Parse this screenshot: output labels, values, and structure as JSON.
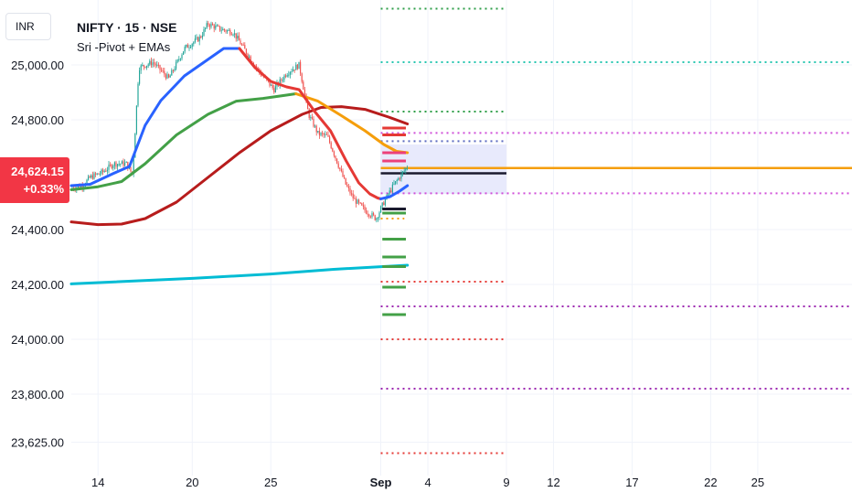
{
  "header": {
    "symbol": "NIFTY · 15 · NSE",
    "indicator": "Sri -Pivot + EMAs"
  },
  "currency_label": "INR",
  "last_price": {
    "value": "24,624.15",
    "change": "+0.33%",
    "numeric": 24624.15
  },
  "colors": {
    "up_candle": "#26a69a",
    "down_candle": "#ef5350",
    "badge": "#f23645",
    "ema_blue": "#2962ff",
    "ema_green": "#43a047",
    "ema_red": "#e53935",
    "ema_darkred": "#b71c1c",
    "ema_cyan": "#00bcd4",
    "ema_orange": "#f59e0b"
  },
  "chart_data": {
    "type": "line",
    "title": "NIFTY · 15 · NSE",
    "subtitle": "Sri -Pivot + EMAs",
    "xlabel": "",
    "ylabel": "",
    "y_ticks": [
      {
        "value": 25000,
        "label": "25,000.00"
      },
      {
        "value": 24800,
        "label": "24,800.00"
      },
      {
        "value": 24400,
        "label": "24,400.00"
      },
      {
        "value": 24200,
        "label": "24,200.00"
      },
      {
        "value": 24000,
        "label": "24,000.00"
      },
      {
        "value": 23800,
        "label": "23,800.00"
      },
      {
        "value": 23625,
        "label": "23,625.00"
      }
    ],
    "x_ticks": [
      {
        "t": 14,
        "label": "14"
      },
      {
        "t": 20,
        "label": "20"
      },
      {
        "t": 25,
        "label": "25"
      },
      {
        "t": 32,
        "label": "Sep"
      },
      {
        "t": 35,
        "label": "4"
      },
      {
        "t": 40,
        "label": "9"
      },
      {
        "t": 43,
        "label": "12"
      },
      {
        "t": 48,
        "label": "17"
      },
      {
        "t": 53,
        "label": "22"
      },
      {
        "t": 56,
        "label": "25"
      }
    ],
    "ylim": [
      23570,
      25210
    ],
    "xlim": [
      12.3,
      62.0
    ],
    "grid": true,
    "price_path": [
      [
        12.3,
        24550
      ],
      [
        13.0,
        24560
      ],
      [
        13.5,
        24590
      ],
      [
        14.3,
        24610
      ],
      [
        15.0,
        24640
      ],
      [
        15.8,
        24640
      ],
      [
        16.2,
        24600
      ],
      [
        16.6,
        24990
      ],
      [
        17.5,
        25010
      ],
      [
        18.5,
        24950
      ],
      [
        19.5,
        25060
      ],
      [
        20.5,
        25100
      ],
      [
        21.0,
        25150
      ],
      [
        21.8,
        25130
      ],
      [
        22.6,
        25120
      ],
      [
        23.4,
        25050
      ],
      [
        24.2,
        24980
      ],
      [
        25.2,
        24910
      ],
      [
        26.0,
        24970
      ],
      [
        26.8,
        25000
      ],
      [
        27.4,
        24820
      ],
      [
        28.0,
        24750
      ],
      [
        28.6,
        24740
      ],
      [
        29.2,
        24650
      ],
      [
        29.8,
        24560
      ],
      [
        30.3,
        24510
      ],
      [
        31.0,
        24470
      ],
      [
        31.7,
        24440
      ],
      [
        32.2,
        24500
      ],
      [
        32.8,
        24560
      ],
      [
        33.3,
        24600
      ],
      [
        33.7,
        24630
      ]
    ],
    "series": [
      {
        "name": "",
        "color": "#00bcd4",
        "points": [
          [
            12.3,
            24202
          ],
          [
            20.0,
            24222
          ],
          [
            25.0,
            24238
          ],
          [
            29.0,
            24255
          ],
          [
            33.7,
            24270
          ]
        ]
      },
      {
        "name": "",
        "color": "#b71c1c",
        "points": [
          [
            12.3,
            24428
          ],
          [
            14.0,
            24418
          ],
          [
            15.5,
            24420
          ],
          [
            17.0,
            24440
          ],
          [
            19.0,
            24500
          ],
          [
            21.0,
            24590
          ],
          [
            23.0,
            24680
          ],
          [
            25.0,
            24760
          ],
          [
            27.0,
            24820
          ],
          [
            28.2,
            24845
          ],
          [
            29.5,
            24848
          ],
          [
            31.0,
            24838
          ],
          [
            32.5,
            24810
          ],
          [
            33.7,
            24785
          ]
        ]
      },
      {
        "name": "",
        "color": "#43a047",
        "points": [
          [
            12.3,
            24545
          ],
          [
            14.0,
            24556
          ],
          [
            15.5,
            24575
          ],
          [
            17.0,
            24640
          ],
          [
            19.0,
            24745
          ],
          [
            21.0,
            24820
          ],
          [
            22.8,
            24868
          ],
          [
            24.5,
            24878
          ],
          [
            26.0,
            24890
          ],
          [
            26.6,
            24895
          ]
        ]
      },
      {
        "name": "",
        "color": "#f59e0b",
        "points": [
          [
            26.6,
            24895
          ],
          [
            28.0,
            24868
          ],
          [
            29.5,
            24815
          ],
          [
            31.0,
            24760
          ],
          [
            32.2,
            24710
          ],
          [
            33.0,
            24685
          ],
          [
            33.7,
            24680
          ]
        ]
      },
      {
        "name": "",
        "color": "#2962ff",
        "points": [
          [
            12.3,
            24560
          ],
          [
            13.5,
            24565
          ],
          [
            15.0,
            24605
          ],
          [
            16.0,
            24630
          ],
          [
            17.0,
            24780
          ],
          [
            18.0,
            24870
          ],
          [
            19.5,
            24960
          ],
          [
            21.0,
            25020
          ],
          [
            22.0,
            25060
          ],
          [
            23.0,
            25060
          ]
        ]
      },
      {
        "name": "",
        "color": "#e53935",
        "points": [
          [
            23.0,
            25060
          ],
          [
            24.0,
            24990
          ],
          [
            25.0,
            24940
          ],
          [
            26.0,
            24920
          ],
          [
            26.8,
            24910
          ],
          [
            27.8,
            24830
          ],
          [
            28.8,
            24760
          ],
          [
            29.8,
            24650
          ],
          [
            30.6,
            24570
          ],
          [
            31.3,
            24530
          ],
          [
            31.8,
            24515
          ],
          [
            32.0,
            24512
          ]
        ]
      },
      {
        "name": "",
        "color": "#2962ff",
        "points": [
          [
            32.0,
            24512
          ],
          [
            32.6,
            24520
          ],
          [
            33.2,
            24540
          ],
          [
            33.7,
            24560
          ]
        ]
      }
    ],
    "horizontal_levels": [
      {
        "y": 25205,
        "from": 32,
        "to": 40,
        "color": "#2e9e48",
        "style": "dotted"
      },
      {
        "y": 25010,
        "from": 32,
        "to": 62,
        "color": "#26c6b0",
        "style": "dotted"
      },
      {
        "y": 24830,
        "from": 32,
        "to": 40,
        "color": "#2e9e48",
        "style": "dotted"
      },
      {
        "y": 24752,
        "from": 32,
        "to": 62,
        "color": "#d04fd8",
        "style": "dotted"
      },
      {
        "y": 24722,
        "from": 32,
        "to": 40,
        "color": "#5c6bc0",
        "style": "dotted"
      },
      {
        "y": 24624,
        "from": 32,
        "to": 62,
        "color": "#f59e0b",
        "style": "solid"
      },
      {
        "y": 24605,
        "from": 32,
        "to": 40,
        "color": "#1a1a2e",
        "style": "solid"
      },
      {
        "y": 24532,
        "from": 32,
        "to": 62,
        "color": "#d04fd8",
        "style": "dotted"
      },
      {
        "y": 24440,
        "from": 32,
        "to": 33.5,
        "color": "#f59e0b",
        "style": "dotted"
      },
      {
        "y": 24210,
        "from": 32,
        "to": 40,
        "color": "#e53935",
        "style": "dotted"
      },
      {
        "y": 24120,
        "from": 32,
        "to": 62,
        "color": "#9c27b0",
        "style": "dotted"
      },
      {
        "y": 24000,
        "from": 32,
        "to": 40,
        "color": "#e53935",
        "style": "dotted"
      },
      {
        "y": 23820,
        "from": 32,
        "to": 62,
        "color": "#9c27b0",
        "style": "dotted"
      },
      {
        "y": 23585,
        "from": 32,
        "to": 40,
        "color": "#e53935",
        "style": "dotted"
      }
    ],
    "zone": {
      "y_top": 24710,
      "y_bottom": 24530,
      "from": 32,
      "to": 40,
      "color": "#e4e6fb"
    },
    "short_marks": [
      {
        "y": 24770,
        "color": "#e53935"
      },
      {
        "y": 24745,
        "color": "#e53935"
      },
      {
        "y": 24680,
        "color": "#ec407a"
      },
      {
        "y": 24650,
        "color": "#ec407a"
      },
      {
        "y": 24475,
        "color": "#1a1a2e"
      },
      {
        "y": 24460,
        "color": "#43a047"
      },
      {
        "y": 24365,
        "color": "#43a047"
      },
      {
        "y": 24300,
        "color": "#43a047"
      },
      {
        "y": 24265,
        "color": "#43a047"
      },
      {
        "y": 24190,
        "color": "#43a047"
      },
      {
        "y": 24090,
        "color": "#43a047"
      }
    ]
  }
}
